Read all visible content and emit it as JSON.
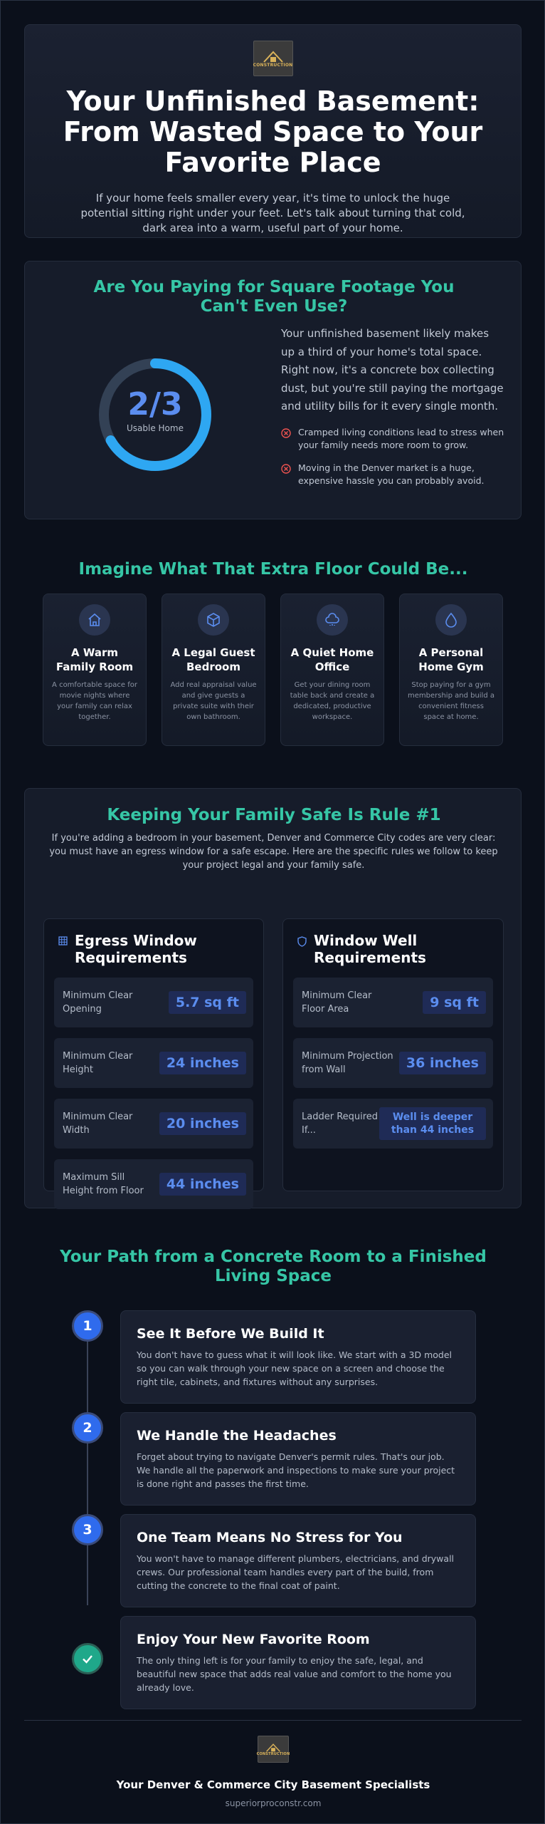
{
  "header": {
    "logo_text": "CONSTRUCTION"
  },
  "hero": {
    "title": "Your Unfinished Basement: From Wasted Space to Your Favorite Place",
    "subtitle": "If your home feels smaller every year, it's time to unlock the huge potential sitting right under your feet. Let's talk about turning that cold, dark area into a warm, useful part of your home."
  },
  "problem": {
    "heading": "Are You Paying for Square Footage You Can't Even Use?",
    "stat_value": "2/3",
    "stat_label": "Usable Home",
    "paragraph": "Your unfinished basement likely makes up a third of your home's total space. Right now, it's a concrete box collecting dust, but you're still paying the mortgage and utility bills for it every single month.",
    "bullets": [
      "Cramped living conditions lead to stress when your family needs more room to grow.",
      "Moving in the Denver market is a huge, expensive hassle you can probably avoid."
    ]
  },
  "ideas": {
    "heading": "Imagine What That Extra Floor Could Be...",
    "cards": [
      {
        "title": "A Warm Family Room",
        "text": "A comfortable space for movie nights where your family can relax together."
      },
      {
        "title": "A Legal Guest Bedroom",
        "text": "Add real appraisal value and give guests a private suite with their own bathroom."
      },
      {
        "title": "A Quiet Home Office",
        "text": "Get your dining room table back and create a dedicated, productive workspace."
      },
      {
        "title": "A Personal Home Gym",
        "text": "Stop paying for a gym membership and build a convenient fitness space at home."
      }
    ]
  },
  "safety": {
    "heading": "Keeping Your Family Safe Is Rule #1",
    "intro": "If you're adding a bedroom in your basement, Denver and Commerce City codes are very clear: you must have an egress window for a safe escape. Here are the specific rules we follow to keep your project legal and your family safe.",
    "panels": [
      {
        "title": "Egress Window Requirements",
        "rows": [
          {
            "label": "Minimum Clear Opening",
            "value": "5.7 sq ft"
          },
          {
            "label": "Minimum Clear Height",
            "value": "24 inches"
          },
          {
            "label": "Minimum Clear Width",
            "value": "20 inches"
          },
          {
            "label": "Maximum Sill Height from Floor",
            "value": "44 inches"
          }
        ]
      },
      {
        "title": "Window Well Requirements",
        "rows": [
          {
            "label": "Minimum Clear Floor Area",
            "value": "9 sq ft"
          },
          {
            "label": "Minimum Projection from Wall",
            "value": "36 inches"
          },
          {
            "label": "Ladder Required If...",
            "value": "Well is deeper than 44 inches"
          }
        ]
      }
    ]
  },
  "path": {
    "heading": "Your Path from a Concrete Room to a Finished Living Space",
    "steps": [
      {
        "number": 1,
        "title": "See It Before We Build It",
        "text": "You don't have to guess what it will look like. We start with a 3D model so you can walk through your new space on a screen and choose the right tile, cabinets, and fixtures without any surprises."
      },
      {
        "number": 2,
        "title": "We Handle the Headaches",
        "text": "Forget about trying to navigate Denver's permit rules. That's our job. We handle all the paperwork and inspections to make sure your project is done right and passes the first time."
      },
      {
        "number": 3,
        "title": "One Team Means No Stress for You",
        "text": "You won't have to manage different plumbers, electricians, and drywall crews. Our professional team handles every part of the build, from cutting the concrete to the final coat of paint."
      },
      {
        "title": "Enjoy Your New Favorite Room",
        "text": "The only thing left is for your family to enjoy the safe, legal, and beautiful new space that adds real value and comfort to the home you already love."
      }
    ]
  },
  "footer": {
    "logo_text": "CONSTRUCTION",
    "tagline": "Your Denver & Commerce City Basement Specialists",
    "url": "superiorproconstr.com"
  }
}
